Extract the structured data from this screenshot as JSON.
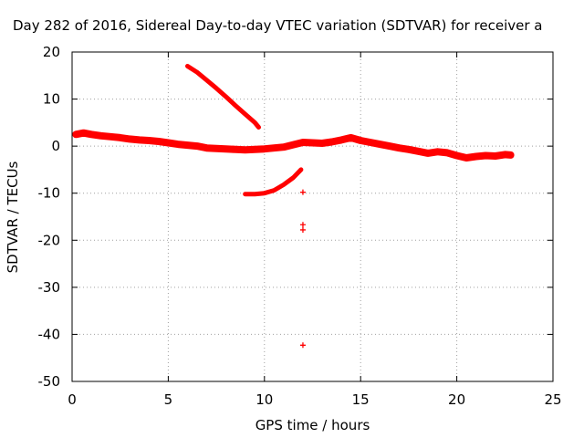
{
  "chart_data": {
    "type": "scatter",
    "title": "Day 282 of 2016, Sidereal Day-to-day VTEC variation (SDTVAR) for receiver a",
    "xlabel": "GPS time / hours",
    "ylabel": "SDTVAR / TECUs",
    "xlim": [
      0,
      25
    ],
    "ylim": [
      -50,
      20
    ],
    "xticks": [
      0,
      5,
      10,
      15,
      20,
      25
    ],
    "yticks": [
      20,
      10,
      0,
      -10,
      -20,
      -30,
      -40,
      -50
    ],
    "grid": true,
    "color": "#ff0000",
    "marker": "+",
    "series": [
      {
        "name": "main-track",
        "x": [
          0.2,
          0.6,
          1.0,
          1.5,
          2.0,
          2.5,
          3.0,
          3.5,
          4.0,
          4.5,
          5.0,
          5.5,
          6.0,
          6.5,
          7.0,
          7.5,
          8.0,
          8.5,
          9.0,
          9.5,
          10.0,
          10.5,
          11.0,
          11.5,
          12.0,
          12.5,
          13.0,
          13.5,
          14.0,
          14.5,
          15.0,
          15.5,
          16.0,
          16.5,
          17.0,
          17.5,
          18.0,
          18.5,
          19.0,
          19.5,
          20.0,
          20.5,
          21.0,
          21.5,
          22.0,
          22.5,
          22.8
        ],
        "y": [
          2.5,
          2.8,
          2.5,
          2.2,
          2.0,
          1.8,
          1.5,
          1.3,
          1.2,
          1.0,
          0.7,
          0.4,
          0.2,
          0.0,
          -0.4,
          -0.5,
          -0.6,
          -0.7,
          -0.8,
          -0.7,
          -0.6,
          -0.4,
          -0.2,
          0.3,
          0.8,
          0.7,
          0.6,
          0.9,
          1.3,
          1.8,
          1.2,
          0.8,
          0.4,
          0.0,
          -0.4,
          -0.7,
          -1.1,
          -1.5,
          -1.2,
          -1.4,
          -2.0,
          -2.5,
          -2.2,
          -2.0,
          -2.1,
          -1.8,
          -1.9
        ]
      },
      {
        "name": "descending-arc",
        "x": [
          6.0,
          6.5,
          7.0,
          7.5,
          8.0,
          8.5,
          9.0,
          9.5,
          9.7
        ],
        "y": [
          17.0,
          15.7,
          14.0,
          12.3,
          10.5,
          8.6,
          6.8,
          5.0,
          4.0
        ]
      },
      {
        "name": "lower-arc",
        "x": [
          9.0,
          9.5,
          10.0,
          10.5,
          11.0,
          11.5,
          11.9
        ],
        "y": [
          -10.2,
          -10.2,
          -10.0,
          -9.4,
          -8.2,
          -6.7,
          -5.0
        ]
      },
      {
        "name": "outliers",
        "x": [
          12.0,
          12.0,
          12.0,
          12.0
        ],
        "y": [
          -9.8,
          -16.7,
          -17.8,
          -42.3
        ]
      }
    ]
  }
}
